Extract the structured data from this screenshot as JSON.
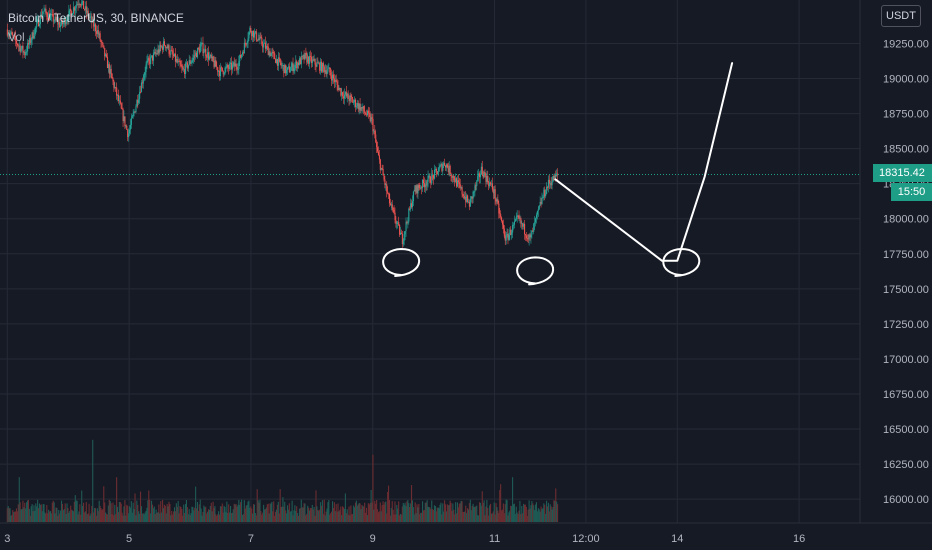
{
  "header": {
    "symbol": "Bitcoin / TetherUS, 30, BINANCE",
    "indicator": "Vol"
  },
  "price_axis": {
    "unit": "USDT",
    "last_price": "18315.42",
    "countdown": "15:50"
  },
  "colors": {
    "background": "#161a25",
    "grid": "#262a36",
    "up": "#26a69a",
    "down": "#ef5350",
    "up_volume": "#1f5a55",
    "down_volume": "#6b2d31",
    "axis_text": "#b2b5be",
    "drawing": "#ffffff",
    "price_tag": "#1e9e87"
  },
  "chart_data": {
    "type": "candlestick",
    "y_ticks": [
      "19250.00",
      "19000.00",
      "18750.00",
      "18500.00",
      "18250.00",
      "18000.00",
      "17750.00",
      "17500.00",
      "17250.00",
      "17000.00",
      "16750.00",
      "16500.00",
      "16250.00",
      "16000.00"
    ],
    "y_tick_values": [
      19250,
      19000,
      18750,
      18500,
      18250,
      18000,
      17750,
      17500,
      17250,
      17000,
      16750,
      16500,
      16250,
      16000
    ],
    "x_ticks": [
      "3",
      "5",
      "7",
      "9",
      "11",
      "12:00",
      "14",
      "16"
    ],
    "x_tick_days": [
      3,
      5,
      7,
      9,
      11,
      12.5,
      14,
      16
    ],
    "ylim": [
      15830,
      19560
    ],
    "xlim": [
      2.88,
      17.0
    ],
    "last_price": 18315.42,
    "price_path": [
      [
        3.0,
        19350
      ],
      [
        3.3,
        19180
      ],
      [
        3.6,
        19480
      ],
      [
        3.9,
        19380
      ],
      [
        4.2,
        19560
      ],
      [
        4.5,
        19330
      ],
      [
        4.8,
        18900
      ],
      [
        5.0,
        18600
      ],
      [
        5.3,
        19100
      ],
      [
        5.6,
        19250
      ],
      [
        5.9,
        19050
      ],
      [
        6.2,
        19230
      ],
      [
        6.5,
        19050
      ],
      [
        6.8,
        19100
      ],
      [
        7.0,
        19350
      ],
      [
        7.3,
        19200
      ],
      [
        7.6,
        19050
      ],
      [
        7.9,
        19150
      ],
      [
        8.3,
        19050
      ],
      [
        8.5,
        18900
      ],
      [
        8.8,
        18800
      ],
      [
        9.0,
        18700
      ],
      [
        9.1,
        18450
      ],
      [
        9.3,
        18100
      ],
      [
        9.5,
        17850
      ],
      [
        9.7,
        18200
      ],
      [
        10.0,
        18300
      ],
      [
        10.2,
        18400
      ],
      [
        10.4,
        18250
      ],
      [
        10.6,
        18100
      ],
      [
        10.8,
        18350
      ],
      [
        11.0,
        18200
      ],
      [
        11.2,
        17850
      ],
      [
        11.4,
        18000
      ],
      [
        11.6,
        17850
      ],
      [
        11.8,
        18150
      ],
      [
        11.9,
        18250
      ],
      [
        12.05,
        18310
      ]
    ],
    "volume": {
      "ylim": [
        0,
        170
      ],
      "bars": 600,
      "spikes": [
        [
          3.2,
          60
        ],
        [
          4.4,
          110
        ],
        [
          4.8,
          60
        ],
        [
          9.0,
          90
        ],
        [
          11.3,
          60
        ],
        [
          12.0,
          45
        ]
      ]
    },
    "annotations": {
      "circled_lows": [
        [
          9.4,
          17720
        ],
        [
          11.6,
          17660
        ],
        [
          14.0,
          17720
        ]
      ],
      "projection": [
        [
          12.0,
          18280
        ],
        [
          13.75,
          17700
        ],
        [
          14.0,
          17700
        ],
        [
          14.45,
          18300
        ],
        [
          14.9,
          19110
        ]
      ]
    }
  }
}
